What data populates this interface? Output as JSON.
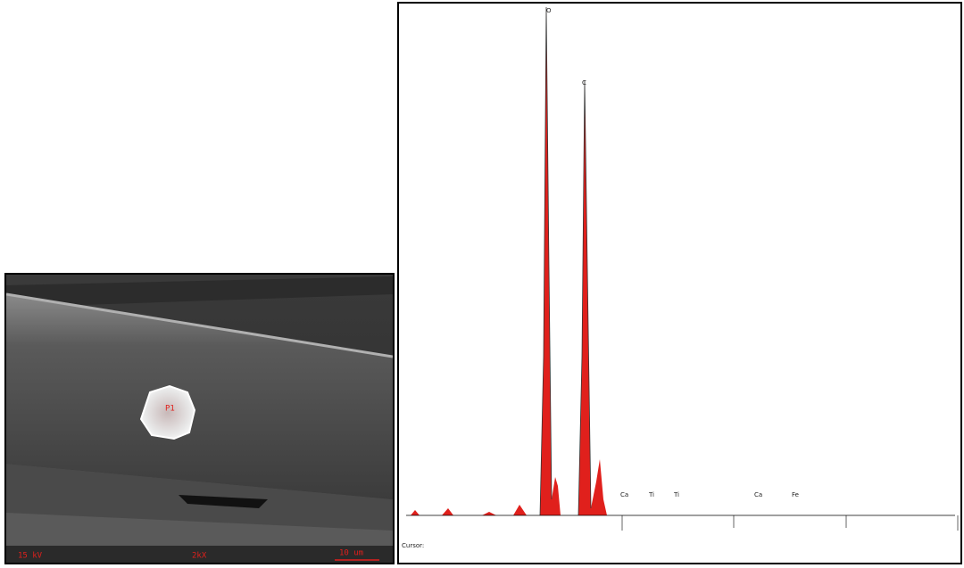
{
  "sem_image": {
    "voltage": "15 kV",
    "magnification": "2kX",
    "scale_bar": "10 um",
    "point_label": "P1"
  },
  "spectrum": {
    "element_labels": [
      "Ca",
      "Ti",
      "Ti",
      "Ca",
      "Fe"
    ],
    "peak_labels": [
      "O",
      "C"
    ],
    "cursor_label": "Cursor:"
  }
}
